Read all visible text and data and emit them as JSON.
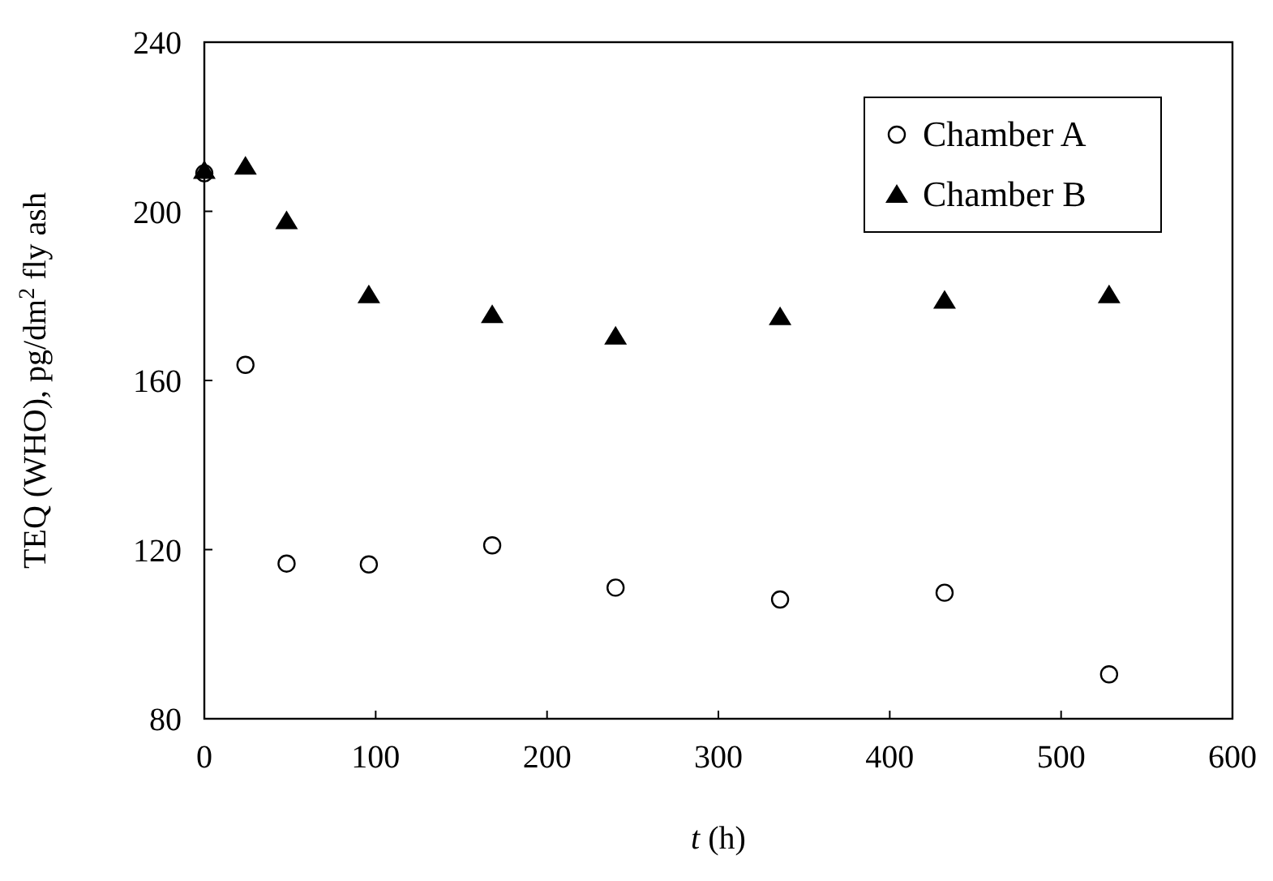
{
  "chart_data": {
    "type": "scatter",
    "xlabel": "t (h)",
    "ylabel": "TEQ (WHO), pg/dm$^{2}$ fly ash",
    "x": [
      0,
      24,
      48,
      96,
      168,
      240,
      336,
      432,
      528
    ],
    "series": [
      {
        "name": "Chamber A",
        "color": "#000000",
        "marker": "circle",
        "values": [
          209,
          163.7,
          116.7,
          116.5,
          121,
          111,
          108.2,
          109.8,
          90.5
        ]
      },
      {
        "name": "Chamber B",
        "color": "#000000",
        "marker": "triangle",
        "values": [
          209.6,
          210.6,
          197.7,
          180.2,
          175.5,
          170.4,
          175,
          178.9,
          180.2
        ]
      }
    ],
    "xlim": [
      0,
      600
    ],
    "xticks": [
      0,
      100,
      200,
      300,
      400,
      500,
      600
    ],
    "ylim": [
      80,
      240
    ],
    "yticks": [
      80,
      120,
      160,
      200,
      240
    ],
    "legend": "top right",
    "grid": false
  }
}
